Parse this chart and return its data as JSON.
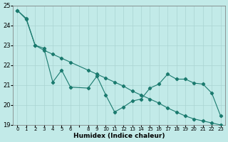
{
  "title": "",
  "xlabel": "Humidex (Indice chaleur)",
  "ylabel": "",
  "background_color": "#c2eae8",
  "grid_color": "#aad4d2",
  "line_color": "#1a7a6e",
  "xlim": [
    -0.5,
    23.5
  ],
  "ylim": [
    19,
    25
  ],
  "yticks": [
    19,
    20,
    21,
    22,
    23,
    24,
    25
  ],
  "xtick_labels": [
    "0",
    "1",
    "2",
    "3",
    "4",
    "5",
    "6",
    "",
    "8",
    "9",
    "10",
    "11",
    "12",
    "13",
    "14",
    "15",
    "16",
    "17",
    "18",
    "19",
    "20",
    "21",
    "22",
    "23"
  ],
  "line1_x": [
    0,
    1,
    2,
    3,
    4,
    5,
    6,
    8,
    9,
    10,
    11,
    12,
    13,
    14,
    15,
    16,
    17,
    18,
    19,
    20,
    21,
    22,
    23
  ],
  "line1_y": [
    24.75,
    24.3,
    23.0,
    22.85,
    21.15,
    21.75,
    20.9,
    20.85,
    21.45,
    20.5,
    19.65,
    19.9,
    20.2,
    20.3,
    20.85,
    21.05,
    21.55,
    21.3,
    21.3,
    21.1,
    21.05,
    20.6,
    19.45
  ],
  "line2_x": [
    0,
    1,
    2,
    3,
    4,
    5,
    6,
    8,
    9,
    10,
    11,
    12,
    13,
    14,
    15,
    16,
    17,
    18,
    19,
    20,
    21,
    22,
    23
  ],
  "line2_y": [
    24.75,
    24.35,
    23.0,
    22.75,
    22.55,
    22.35,
    22.15,
    21.75,
    21.55,
    21.35,
    21.15,
    20.95,
    20.7,
    20.5,
    20.3,
    20.1,
    19.85,
    19.65,
    19.45,
    19.3,
    19.2,
    19.1,
    19.0
  ]
}
